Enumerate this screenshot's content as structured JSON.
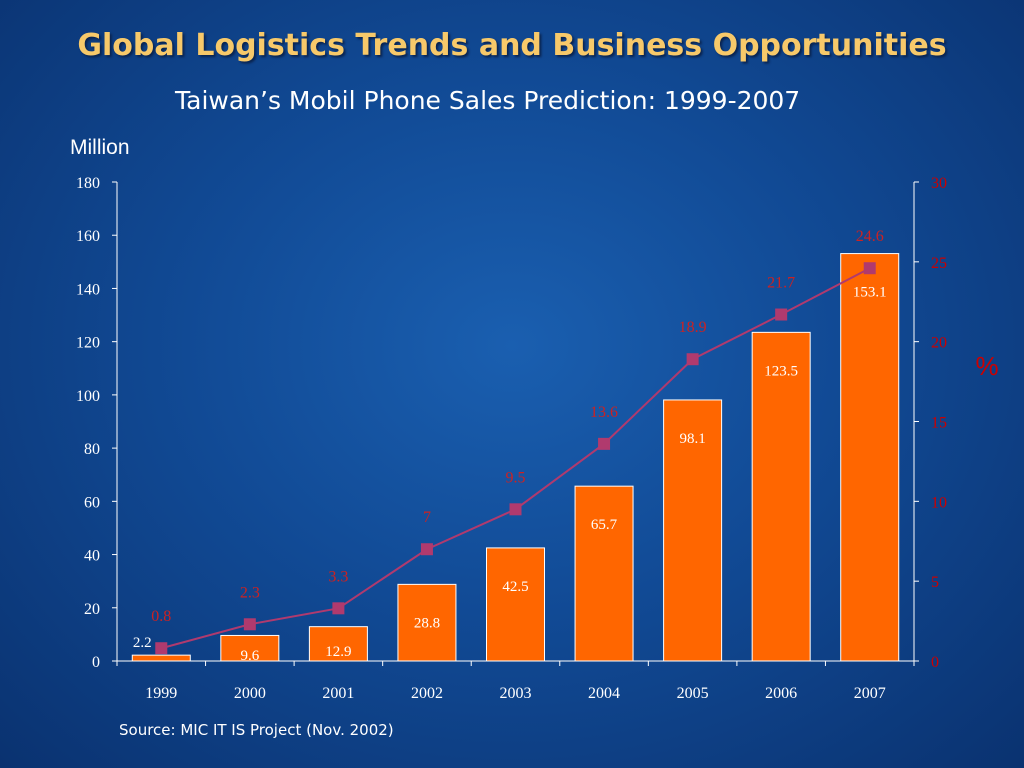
{
  "title": "Global Logistics Trends and Business Opportunities",
  "subtitle": "Taiwan’s Mobil Phone Sales Prediction: 1999-2007",
  "y_unit_label": "Million",
  "y2_unit_label": "%",
  "source": "Source: MIC IT IS Project (Nov. 2002)",
  "colors": {
    "bar": "#ff6600",
    "bar_border": "#ffffff",
    "line": "#b03a6e",
    "marker": "#b03a6e",
    "right_axis_text": "#cc0000",
    "rate_label_text": "#cc2222",
    "axis_text": "#ffffff",
    "title": "#f7c96a"
  },
  "chart_data": {
    "type": "bar",
    "categories": [
      "1999",
      "2000",
      "2001",
      "2002",
      "2003",
      "2004",
      "2005",
      "2006",
      "2007"
    ],
    "series": [
      {
        "type": "bar",
        "axis": "left",
        "values": [
          2.2,
          9.6,
          12.9,
          28.8,
          42.5,
          65.7,
          98.1,
          123.5,
          153.1
        ],
        "labels": [
          "2.2",
          "9.6",
          "12.9",
          "28.8",
          "42.5",
          "65.7",
          "98.1",
          "123.5",
          "153.1"
        ]
      },
      {
        "type": "line",
        "axis": "right",
        "values": [
          0.8,
          2.3,
          3.3,
          7,
          9.5,
          13.6,
          18.9,
          21.7,
          24.6
        ],
        "labels": [
          "0.8",
          "2.3",
          "3.3",
          "7",
          "9.5",
          "13.6",
          "18.9",
          "21.7",
          "24.6"
        ]
      }
    ],
    "ylabel": "Million",
    "y2label": "%",
    "ylim": [
      0,
      180
    ],
    "y2lim": [
      0,
      30
    ],
    "yticks": [
      "0",
      "20",
      "40",
      "60",
      "80",
      "100",
      "120",
      "140",
      "160",
      "180"
    ],
    "y2ticks": [
      "0",
      "5",
      "10",
      "15",
      "20",
      "25",
      "30"
    ],
    "grid": false,
    "legend": "none"
  }
}
